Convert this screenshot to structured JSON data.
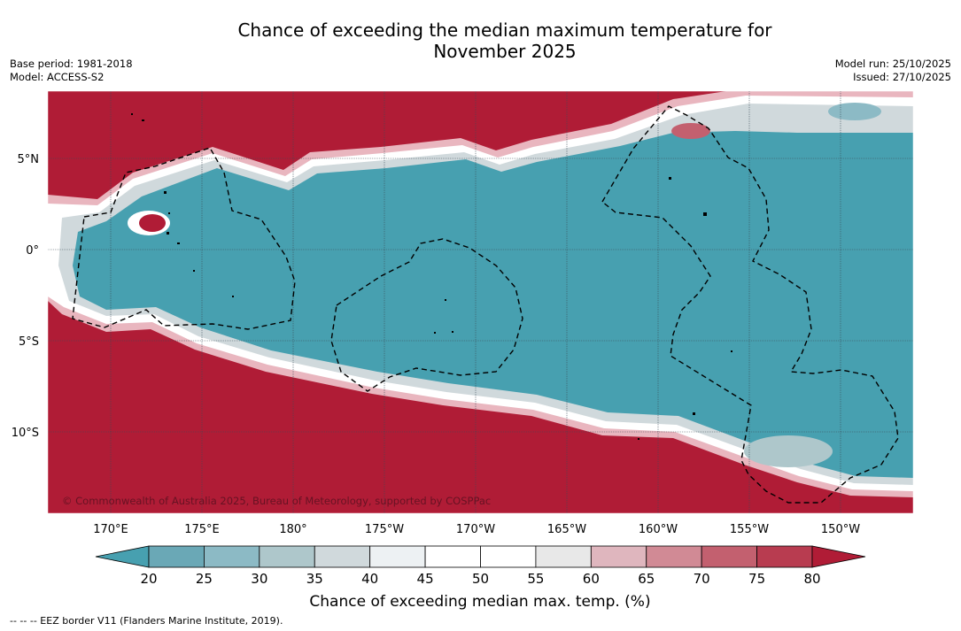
{
  "title_line1": "Chance of exceeding the median maximum temperature for",
  "title_line2": "November 2025",
  "base_period": "Base period: 1981-2018",
  "model": "Model: ACCESS-S2",
  "model_run": "Model run: 25/10/2025",
  "issued": "Issued: 27/10/2025",
  "copyright": "© Commonwealth of Australia 2025, Bureau of Meteorology, supported by COSPPac",
  "map": {
    "lat_labels": [
      "5°N",
      "0°",
      "5°S",
      "10°S"
    ],
    "lon_labels": [
      "170°E",
      "175°E",
      "180°",
      "175°W",
      "170°W",
      "165°W",
      "160°W",
      "155°W",
      "150°W"
    ],
    "colors": {
      "warm": "#b01c36",
      "cool": "#47a0b0"
    }
  },
  "colorbar": {
    "ticks": [
      "20",
      "25",
      "30",
      "35",
      "40",
      "45",
      "50",
      "55",
      "60",
      "65",
      "70",
      "75",
      "80"
    ],
    "colors": [
      "#47a0b0",
      "#6aa8b6",
      "#8cbac5",
      "#aec7cb",
      "#d0d9dc",
      "#edf1f3",
      "#ffffff",
      "#ffffff",
      "#e8e8e8",
      "#dfb6be",
      "#d18a95",
      "#c3606f",
      "#b83c50",
      "#b01c36"
    ],
    "label": "Chance of exceeding median max. temp. (%)"
  },
  "footer": "--  --  -- EEZ border V11 (Flanders Marine Institute, 2019)."
}
